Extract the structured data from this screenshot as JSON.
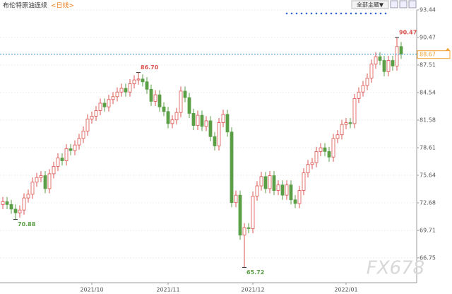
{
  "chart_data": {
    "type": "candlestick",
    "title": "布伦特原油连续",
    "subtitle": "<日线>",
    "menu_label": "全部主题▼",
    "watermark": "FX678",
    "categories": [
      null,
      null,
      null,
      null,
      null,
      null,
      null,
      null,
      null,
      null,
      null,
      null,
      null,
      null,
      null,
      null,
      null,
      null,
      null,
      null,
      null,
      "2021/10",
      null,
      null,
      null,
      null,
      null,
      null,
      null,
      null,
      null,
      null,
      null,
      null,
      null,
      null,
      null,
      null,
      null,
      "2021/11",
      null,
      null,
      null,
      null,
      null,
      null,
      null,
      null,
      null,
      null,
      null,
      null,
      null,
      null,
      null,
      null,
      null,
      null,
      null,
      "2021/12",
      null,
      null,
      null,
      null,
      null,
      null,
      null,
      null,
      null,
      null,
      null,
      null,
      null,
      null,
      null,
      null,
      null,
      null,
      null,
      null,
      null,
      "2022/01",
      null,
      null,
      null,
      null,
      null,
      null,
      null,
      null,
      null,
      null,
      null,
      null,
      null
    ],
    "open": [
      72.5,
      72.8,
      72.5,
      72.0,
      71.6,
      71.9,
      73.2,
      73.6,
      74.9,
      75.4,
      75.6,
      74.2,
      75.8,
      76.6,
      77.5,
      77.2,
      78.5,
      78.3,
      78.9,
      79.6,
      80.4,
      81.7,
      82.0,
      82.6,
      83.4,
      83.0,
      83.8,
      84.1,
      84.6,
      85.0,
      84.6,
      85.5,
      85.9,
      86.0,
      85.7,
      84.9,
      83.6,
      84.3,
      83.0,
      82.5,
      81.2,
      81.6,
      82.4,
      84.7,
      84.0,
      82.3,
      81.0,
      82.1,
      80.9,
      81.5,
      79.8,
      78.8,
      81.3,
      82.2,
      80.3,
      72.7,
      73.5,
      69.2,
      70.0,
      69.9,
      73.4,
      74.5,
      75.5,
      74.2,
      75.6,
      74.0,
      74.6,
      73.5,
      74.6,
      73.0,
      72.6,
      74.0,
      75.9,
      76.8,
      77.0,
      78.2,
      78.6,
      78.2,
      77.6,
      79.6,
      80.0,
      81.1,
      81.3,
      81.2,
      83.9,
      84.6,
      85.3,
      86.1,
      87.6,
      88.4,
      88.0,
      86.8,
      88.0,
      87.4,
      89.5
    ],
    "high": [
      73.3,
      73.3,
      73.0,
      72.5,
      72.4,
      73.7,
      74.1,
      75.4,
      75.9,
      76.1,
      76.1,
      76.3,
      77.1,
      78.0,
      78.0,
      79.0,
      79.0,
      79.4,
      80.1,
      80.9,
      82.2,
      82.5,
      83.1,
      83.9,
      83.9,
      84.3,
      84.6,
      85.1,
      85.5,
      85.5,
      86.0,
      86.4,
      86.7,
      86.5,
      86.2,
      85.4,
      84.8,
      84.8,
      83.5,
      83.0,
      82.1,
      82.9,
      85.2,
      85.2,
      84.5,
      82.8,
      82.6,
      82.6,
      82.0,
      82.0,
      80.3,
      81.8,
      82.7,
      82.7,
      80.8,
      74.0,
      74.0,
      70.5,
      70.5,
      73.9,
      75.0,
      76.0,
      76.0,
      76.1,
      76.1,
      75.1,
      75.1,
      75.1,
      75.1,
      73.5,
      74.5,
      76.4,
      77.3,
      77.5,
      78.7,
      79.1,
      79.1,
      78.7,
      80.1,
      80.5,
      81.6,
      81.8,
      81.8,
      84.4,
      85.1,
      85.8,
      86.6,
      88.1,
      88.9,
      88.9,
      88.5,
      88.5,
      88.5,
      90.47,
      90.0
    ],
    "low": [
      72.0,
      72.0,
      71.5,
      70.88,
      71.1,
      71.4,
      72.7,
      73.1,
      74.4,
      74.9,
      73.7,
      73.7,
      75.3,
      76.1,
      76.7,
      76.7,
      77.8,
      77.8,
      78.4,
      79.1,
      79.9,
      81.2,
      81.5,
      82.1,
      82.5,
      82.5,
      83.3,
      83.6,
      84.1,
      84.1,
      84.1,
      85.0,
      85.4,
      85.2,
      84.4,
      83.1,
      83.1,
      82.5,
      82.0,
      80.7,
      80.7,
      81.1,
      81.9,
      83.5,
      81.8,
      80.5,
      80.5,
      80.4,
      80.4,
      79.3,
      78.3,
      78.3,
      80.8,
      79.8,
      72.2,
      72.2,
      68.7,
      65.72,
      69.4,
      69.4,
      72.9,
      74.0,
      73.7,
      73.7,
      73.5,
      73.5,
      73.0,
      73.0,
      72.5,
      72.1,
      72.1,
      73.5,
      75.4,
      76.3,
      76.5,
      77.7,
      77.7,
      77.1,
      77.1,
      79.1,
      79.5,
      80.6,
      80.7,
      80.7,
      83.4,
      84.1,
      84.8,
      85.6,
      87.1,
      87.5,
      86.3,
      86.3,
      86.9,
      86.9,
      88.17
    ],
    "close": [
      72.8,
      72.5,
      72.0,
      71.6,
      71.9,
      73.2,
      73.6,
      74.9,
      75.4,
      75.6,
      74.2,
      75.8,
      76.6,
      77.5,
      77.2,
      78.5,
      78.3,
      78.9,
      79.6,
      80.4,
      81.7,
      82.0,
      82.6,
      83.4,
      83.0,
      83.8,
      84.1,
      84.6,
      85.0,
      84.6,
      85.5,
      85.9,
      86.0,
      85.7,
      84.9,
      83.6,
      84.3,
      83.0,
      82.5,
      81.2,
      81.6,
      82.4,
      84.7,
      84.0,
      82.3,
      81.0,
      82.1,
      80.9,
      81.5,
      79.8,
      78.8,
      81.3,
      82.2,
      80.3,
      72.7,
      73.5,
      69.2,
      70.0,
      69.9,
      73.4,
      74.5,
      75.5,
      74.2,
      75.6,
      74.0,
      74.6,
      73.5,
      74.6,
      73.0,
      72.6,
      74.0,
      75.9,
      76.8,
      77.0,
      78.2,
      78.6,
      78.2,
      77.6,
      79.6,
      80.0,
      81.1,
      81.3,
      81.2,
      83.9,
      84.6,
      85.3,
      86.1,
      87.6,
      88.4,
      88.0,
      86.8,
      88.0,
      87.4,
      89.5,
      88.67
    ],
    "up_color": "#d9534f",
    "down_color": "#5a9e46",
    "annotations": [
      {
        "value": 86.7,
        "label": "86.70"
      },
      {
        "value": 90.47,
        "label": "90.47"
      },
      {
        "value": 70.88,
        "label": "70.88"
      },
      {
        "value": 65.72,
        "label": "65.72"
      }
    ],
    "last_price": 88.67,
    "last_color": "#f0a030",
    "ylim": [
      64.08,
      93.44
    ],
    "yticks": [
      66.75,
      69.71,
      72.68,
      75.64,
      78.61,
      81.58,
      84.54,
      87.51,
      90.47,
      93.44
    ],
    "grid": true
  }
}
